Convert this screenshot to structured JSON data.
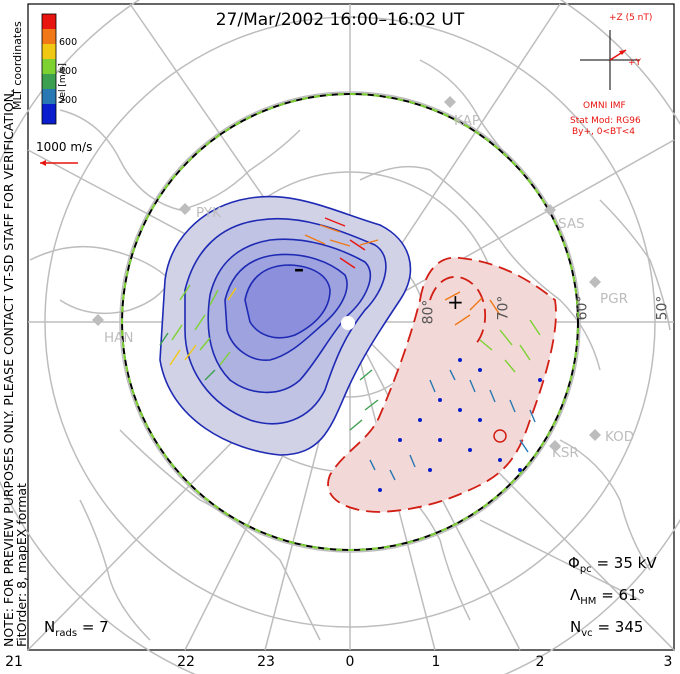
{
  "title": "27/Mar/2002  16:00–16:02 UT",
  "note_lines": [
    "NOTE: FOR PREVIEW PURPOSES ONLY. PLEASE CONTACT VT-SD STAFF FOR VERIFICATION.",
    "FitOrder: 8, mapEX format"
  ],
  "coord_label": "MLT coordinates",
  "scale_label": "1000 m/s",
  "colorbar": {
    "label": "Vel [m/s]",
    "ticks": [
      "600",
      "400",
      "200"
    ],
    "colors": [
      "#e8140f",
      "#f07817",
      "#f0c814",
      "#7dd232",
      "#3ca050",
      "#2878b4",
      "#0a1ecd"
    ]
  },
  "imf": {
    "axis_z": "+Z (5 nT)",
    "axis_y": "+Y",
    "source": "OMNI IMF",
    "model": "Stat Mod: RG96",
    "condition": "By+, 0<BT<4"
  },
  "stats": {
    "phi_pc": "= 35 kV",
    "lambda_hm": "= 61°",
    "n_vc": "= 345",
    "n_rads": "= 7"
  },
  "mlt_labels": [
    "21",
    "22",
    "23",
    "0",
    "1",
    "2",
    "3"
  ],
  "radars": [
    "KAP",
    "SAS",
    "PGR",
    "KOD",
    "KSR",
    "PYK",
    "HAN"
  ],
  "lat_labels": [
    "80°",
    "70°",
    "60°",
    "50°"
  ],
  "cell_signs": {
    "negative": "–",
    "positive": "+"
  },
  "colors": {
    "negative_cell": "#1e2ab4",
    "positive_cell": "#d21e14",
    "hm_boundary_dash": "#7dd232",
    "map": "#bdbdbd"
  }
}
